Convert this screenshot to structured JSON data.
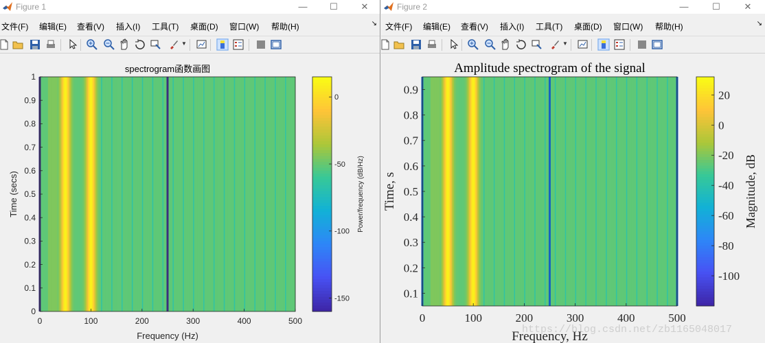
{
  "windows": [
    {
      "title": "Figure 1",
      "menu": [
        "文件(F)",
        "编辑(E)",
        "查看(V)",
        "插入(I)",
        "工具(T)",
        "桌面(D)",
        "窗口(W)",
        "帮助(H)"
      ],
      "menu_arrow": "↘"
    },
    {
      "title": "Figure 2",
      "menu": [
        "文件(F)",
        "编辑(E)",
        "查看(V)",
        "插入(I)",
        "工具(T)",
        "桌面(D)",
        "窗口(W)",
        "帮助(H)"
      ],
      "menu_arrow": "↘"
    }
  ],
  "toolbar_icons": [
    "new-file-icon",
    "open-folder-icon",
    "save-icon",
    "print-icon",
    "pointer-icon",
    "zoom-in-icon",
    "zoom-out-icon",
    "pan-hand-icon",
    "rotate-3d-icon",
    "data-cursor-icon",
    "brush-icon",
    "link-plot-icon",
    "colorbar-icon",
    "legend-icon",
    "hide-plot-tools-icon",
    "show-plot-tools-icon"
  ],
  "chart_data": [
    {
      "type": "heatmap",
      "title": "spectrogram函数画图",
      "xlabel": "Frequency (Hz)",
      "ylabel": "Time (secs)",
      "xlim": [
        0,
        500
      ],
      "ylim": [
        0,
        1
      ],
      "xticks": [
        "0",
        "100",
        "200",
        "300",
        "400",
        "500"
      ],
      "yticks": [
        "0",
        "0.1",
        "0.2",
        "0.3",
        "0.4",
        "0.5",
        "0.6",
        "0.7",
        "0.8",
        "0.9",
        "1"
      ],
      "colorbar_label": "Power/frequency (dB/Hz)",
      "colorbar_ticks": [
        "0",
        "-50",
        "-100",
        "-150"
      ],
      "colorbar_range": [
        -160,
        15
      ],
      "peaks_hz": [
        50,
        100
      ],
      "dark_lines_hz": [
        0,
        250
      ]
    },
    {
      "type": "heatmap",
      "title": "Amplitude spectrogram of the signal",
      "xlabel": "Frequency, Hz",
      "ylabel": "Time, s",
      "xlim": [
        0,
        500
      ],
      "ylim": [
        0.05,
        0.95
      ],
      "xticks": [
        "0",
        "100",
        "200",
        "300",
        "400",
        "500"
      ],
      "yticks": [
        "0.1",
        "0.2",
        "0.3",
        "0.4",
        "0.5",
        "0.6",
        "0.7",
        "0.8",
        "0.9"
      ],
      "colorbar_label": "Magnitude, dB",
      "colorbar_ticks": [
        "20",
        "0",
        "-20",
        "-40",
        "-60",
        "-80",
        "-100"
      ],
      "colorbar_range": [
        -120,
        32
      ],
      "peaks_hz": [
        50,
        100
      ],
      "dark_lines_hz": [
        0,
        250,
        500
      ]
    }
  ],
  "watermark": "https://blog.csdn.net/zb1165048017"
}
